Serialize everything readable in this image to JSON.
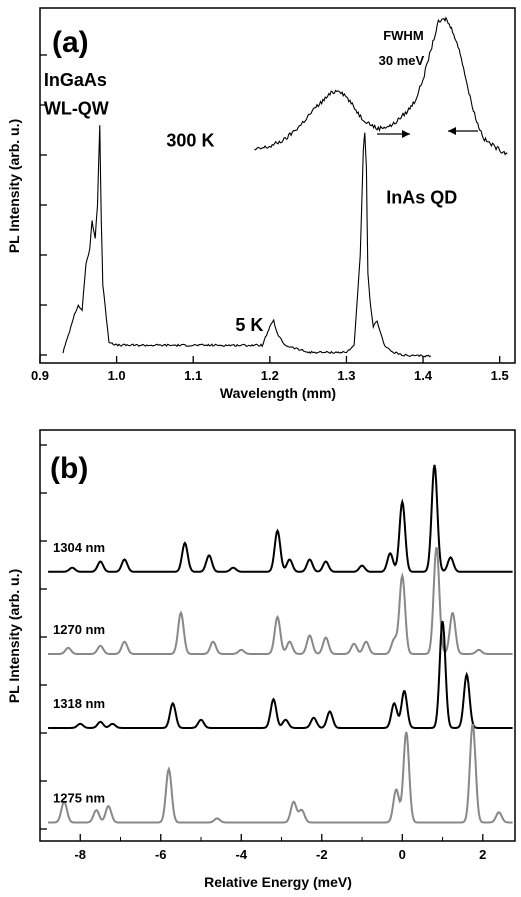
{
  "chart_data": [
    {
      "type": "line",
      "panel_label": "(a)",
      "xlabel": "Wavelength (mm)",
      "ylabel": "PL Intensity (arb. u.)",
      "xlim": [
        0.9,
        1.52
      ],
      "ylim": [
        0,
        1
      ],
      "x_ticks": [
        "0.9",
        "1.0",
        "1.1",
        "1.2",
        "1.3",
        "1.4",
        "1.5"
      ],
      "x_tick_values": [
        0.9,
        1.0,
        1.1,
        1.2,
        1.3,
        1.4,
        1.5
      ],
      "y_tick_labels_shown": false,
      "series": [
        {
          "name": "5 K",
          "color": "#000000",
          "x": [
            0.93,
            0.94,
            0.945,
            0.95,
            0.955,
            0.96,
            0.965,
            0.968,
            0.972,
            0.975,
            0.978,
            0.98,
            0.982,
            0.985,
            0.99,
            1.0,
            1.05,
            1.1,
            1.15,
            1.19,
            1.2,
            1.205,
            1.21,
            1.22,
            1.25,
            1.3,
            1.31,
            1.318,
            1.322,
            1.324,
            1.326,
            1.328,
            1.332,
            1.335,
            1.34,
            1.345,
            1.35,
            1.36,
            1.38,
            1.41
          ],
          "values": [
            0.03,
            0.1,
            0.14,
            0.16,
            0.15,
            0.28,
            0.32,
            0.4,
            0.35,
            0.45,
            0.67,
            0.4,
            0.22,
            0.16,
            0.06,
            0.05,
            0.05,
            0.05,
            0.05,
            0.05,
            0.1,
            0.12,
            0.08,
            0.05,
            0.03,
            0.03,
            0.05,
            0.3,
            0.6,
            0.65,
            0.55,
            0.25,
            0.15,
            0.1,
            0.12,
            0.08,
            0.05,
            0.03,
            0.02,
            0.02
          ]
        },
        {
          "name": "300 K",
          "color": "#000000",
          "x": [
            1.18,
            1.2,
            1.22,
            1.24,
            1.26,
            1.28,
            1.29,
            1.3,
            1.32,
            1.34,
            1.36,
            1.38,
            1.39,
            1.4,
            1.41,
            1.42,
            1.43,
            1.44,
            1.45,
            1.46,
            1.47,
            1.48,
            1.5,
            1.51
          ],
          "values": [
            0.6,
            0.61,
            0.63,
            0.67,
            0.72,
            0.76,
            0.77,
            0.75,
            0.69,
            0.66,
            0.67,
            0.71,
            0.74,
            0.8,
            0.88,
            0.96,
            0.97,
            0.93,
            0.86,
            0.76,
            0.68,
            0.63,
            0.6,
            0.59
          ]
        }
      ],
      "annotations": [
        {
          "text": "InGaAs",
          "x": 0.905,
          "y": 0.78
        },
        {
          "text": "WL-QW",
          "x": 0.905,
          "y": 0.7
        },
        {
          "text": "300 K",
          "x": 1.065,
          "y": 0.61
        },
        {
          "text": "InAs QD",
          "x": 1.352,
          "y": 0.45
        },
        {
          "text": "5 K",
          "x": 1.155,
          "y": 0.09
        },
        {
          "text": "FWHM",
          "x": 1.348,
          "y": 0.91
        },
        {
          "text": "30 meV",
          "x": 1.342,
          "y": 0.84
        }
      ]
    },
    {
      "type": "line",
      "panel_label": "(b)",
      "xlabel": "Relative Energy (meV)",
      "ylabel": "PL Intensity (arb. u.)",
      "xlim": [
        -9.0,
        2.8
      ],
      "ylim": [
        0,
        1
      ],
      "x_ticks": [
        "-8",
        "-6",
        "-4",
        "-2",
        "0",
        "2"
      ],
      "x_tick_values": [
        -8,
        -6,
        -4,
        -2,
        0,
        2
      ],
      "y_tick_labels_shown": false,
      "series": [
        {
          "name": "1304 nm",
          "color": "#000000",
          "baseline": 0.655,
          "peaks": [
            [
              -8.2,
              0.01
            ],
            [
              -7.5,
              0.025
            ],
            [
              -6.9,
              0.03
            ],
            [
              -5.4,
              0.07
            ],
            [
              -4.8,
              0.04
            ],
            [
              -4.2,
              0.01
            ],
            [
              -3.1,
              0.1
            ],
            [
              -2.8,
              0.03
            ],
            [
              -2.3,
              0.03
            ],
            [
              -1.9,
              0.025
            ],
            [
              -1.0,
              0.015
            ],
            [
              -0.3,
              0.045
            ],
            [
              0.0,
              0.17
            ],
            [
              0.8,
              0.26
            ],
            [
              1.2,
              0.035
            ]
          ]
        },
        {
          "name": "1270 nm",
          "color": "#888888",
          "baseline": 0.455,
          "peaks": [
            [
              -8.3,
              0.015
            ],
            [
              -7.5,
              0.02
            ],
            [
              -6.9,
              0.03
            ],
            [
              -5.5,
              0.1
            ],
            [
              -4.7,
              0.03
            ],
            [
              -4.0,
              0.01
            ],
            [
              -3.1,
              0.09
            ],
            [
              -2.8,
              0.03
            ],
            [
              -2.3,
              0.045
            ],
            [
              -1.9,
              0.04
            ],
            [
              -1.2,
              0.025
            ],
            [
              -0.9,
              0.03
            ],
            [
              -0.2,
              0.035
            ],
            [
              0.0,
              0.19
            ],
            [
              0.85,
              0.26
            ],
            [
              1.25,
              0.1
            ],
            [
              1.9,
              0.01
            ]
          ]
        },
        {
          "name": "1318 nm",
          "color": "#000000",
          "baseline": 0.275,
          "peaks": [
            [
              -8.0,
              0.01
            ],
            [
              -7.5,
              0.015
            ],
            [
              -7.2,
              0.01
            ],
            [
              -5.7,
              0.06
            ],
            [
              -5.0,
              0.02
            ],
            [
              -3.2,
              0.07
            ],
            [
              -2.9,
              0.02
            ],
            [
              -2.2,
              0.025
            ],
            [
              -1.8,
              0.04
            ],
            [
              -0.2,
              0.06
            ],
            [
              0.05,
              0.09
            ],
            [
              1.0,
              0.26
            ],
            [
              1.6,
              0.13
            ]
          ]
        },
        {
          "name": "1275 nm",
          "color": "#888888",
          "baseline": 0.045,
          "peaks": [
            [
              -8.4,
              0.05
            ],
            [
              -7.6,
              0.03
            ],
            [
              -7.3,
              0.04
            ],
            [
              -5.8,
              0.13
            ],
            [
              -4.6,
              0.01
            ],
            [
              -2.7,
              0.05
            ],
            [
              -2.5,
              0.03
            ],
            [
              -0.15,
              0.08
            ],
            [
              0.1,
              0.22
            ],
            [
              1.75,
              0.24
            ],
            [
              2.4,
              0.025
            ]
          ]
        }
      ]
    }
  ]
}
